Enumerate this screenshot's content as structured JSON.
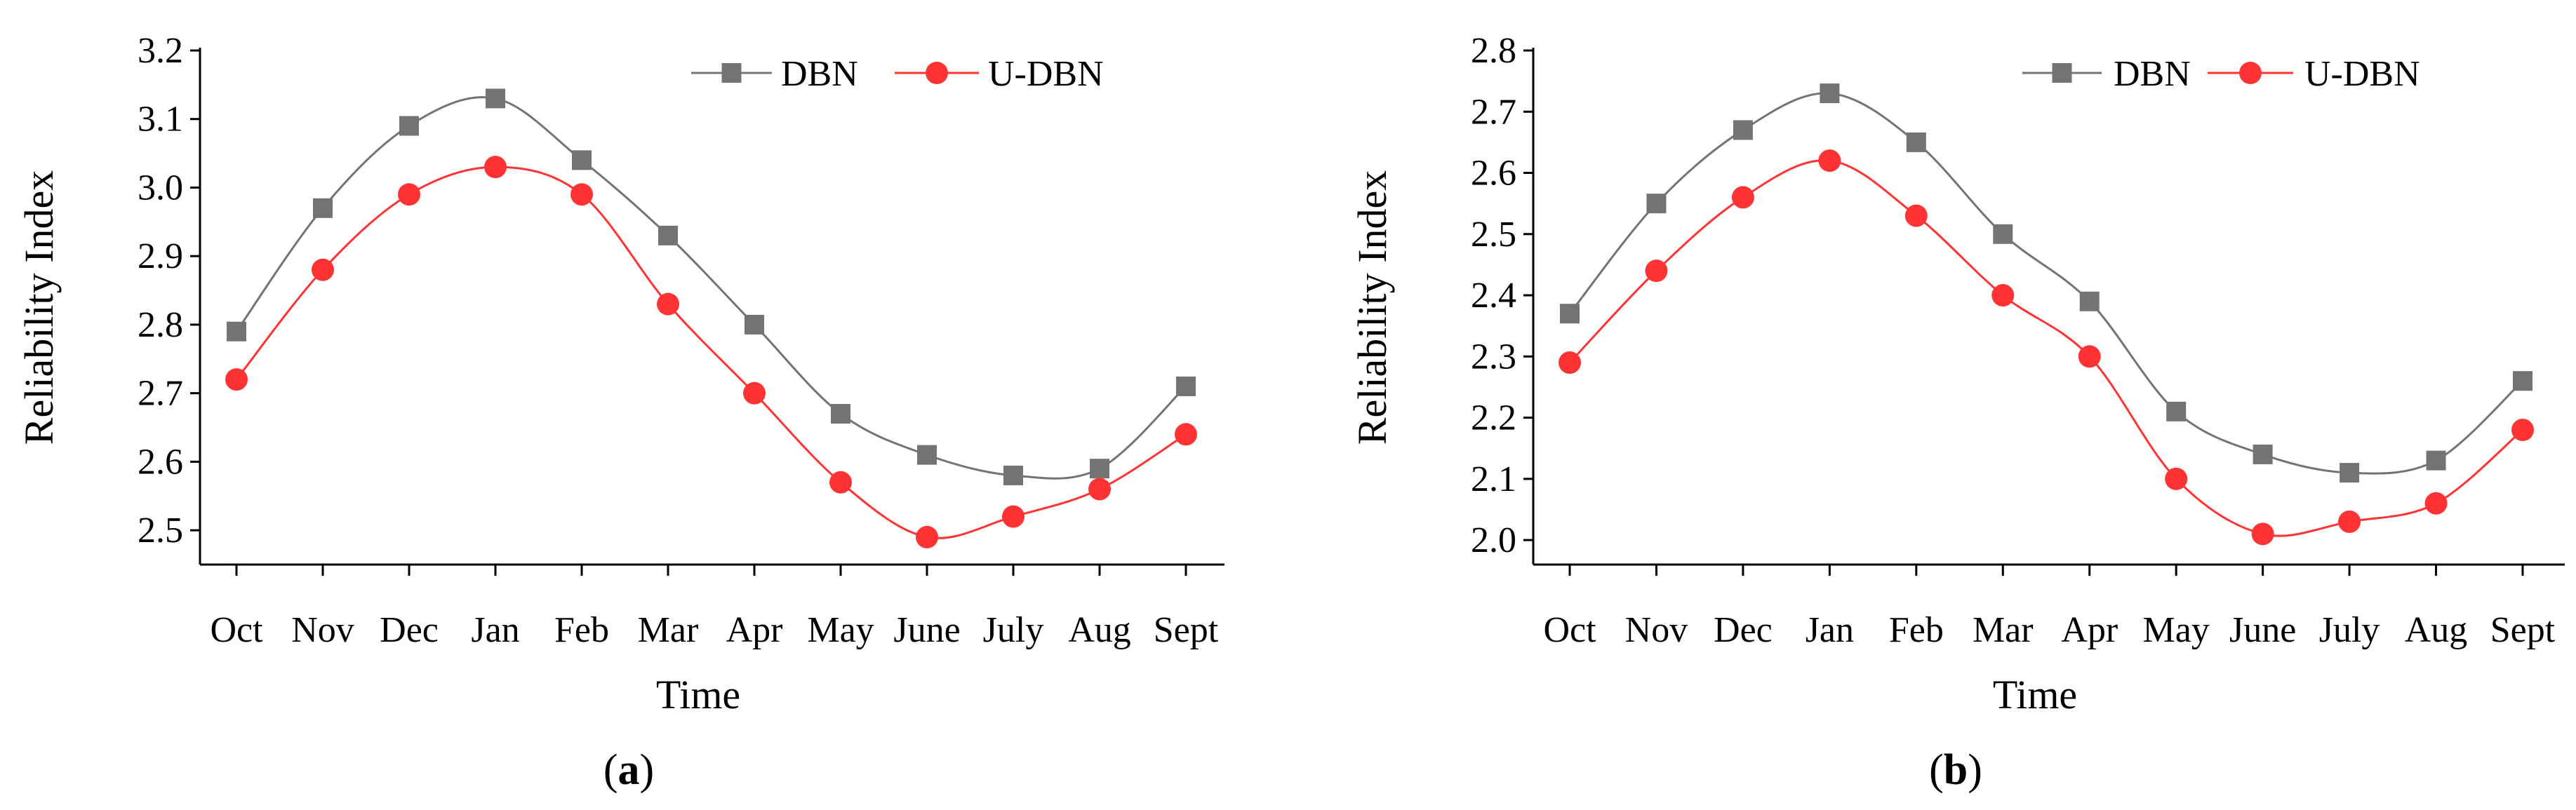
{
  "figure": {
    "caption_a": {
      "open": "(",
      "letter": "a",
      "close": ")"
    },
    "caption_b": {
      "open": "(",
      "letter": "b",
      "close": ")"
    }
  },
  "colors": {
    "dbn": "#737373",
    "udbn": "#ff3333",
    "axis": "#000000"
  },
  "chart_data": [
    {
      "type": "line",
      "panel": "a",
      "categories": [
        "Oct",
        "Nov",
        "Dec",
        "Jan",
        "Feb",
        "Mar",
        "Apr",
        "May",
        "June",
        "July",
        "Aug",
        "Sept"
      ],
      "series": [
        {
          "name": "DBN",
          "marker": "square",
          "values": [
            2.79,
            2.97,
            3.09,
            3.13,
            3.04,
            2.93,
            2.8,
            2.67,
            2.61,
            2.58,
            2.59,
            2.71
          ]
        },
        {
          "name": "U-DBN",
          "marker": "circle",
          "values": [
            2.72,
            2.88,
            2.99,
            3.03,
            2.99,
            2.83,
            2.7,
            2.57,
            2.49,
            2.52,
            2.56,
            2.64
          ]
        }
      ],
      "xlabel": "Time",
      "ylabel": "Reliability Index",
      "ylim": [
        2.45,
        3.2
      ],
      "yticks": [
        2.5,
        2.6,
        2.7,
        2.8,
        2.9,
        3.0,
        3.1,
        3.2
      ],
      "ytick_labels": [
        "2.5",
        "2.6",
        "2.7",
        "2.8",
        "2.9",
        "3.0",
        "3.1",
        "3.2"
      ],
      "legend": "top-right",
      "grid": false
    },
    {
      "type": "line",
      "panel": "b",
      "categories": [
        "Oct",
        "Nov",
        "Dec",
        "Jan",
        "Feb",
        "Mar",
        "Apr",
        "May",
        "June",
        "July",
        "Aug",
        "Sept"
      ],
      "series": [
        {
          "name": "DBN",
          "marker": "square",
          "values": [
            2.37,
            2.55,
            2.67,
            2.73,
            2.65,
            2.5,
            2.39,
            2.21,
            2.14,
            2.11,
            2.13,
            2.26
          ]
        },
        {
          "name": "U-DBN",
          "marker": "circle",
          "values": [
            2.29,
            2.44,
            2.56,
            2.62,
            2.53,
            2.4,
            2.3,
            2.1,
            2.01,
            2.03,
            2.06,
            2.18
          ]
        }
      ],
      "xlabel": "Time",
      "ylabel": "Reliability Index",
      "ylim": [
        1.96,
        2.8
      ],
      "yticks": [
        2.0,
        2.1,
        2.2,
        2.3,
        2.4,
        2.5,
        2.6,
        2.7,
        2.8
      ],
      "ytick_labels": [
        "2.0",
        "2.1",
        "2.2",
        "2.3",
        "2.4",
        "2.5",
        "2.6",
        "2.7",
        "2.8"
      ],
      "legend": "top-right",
      "grid": false
    }
  ]
}
